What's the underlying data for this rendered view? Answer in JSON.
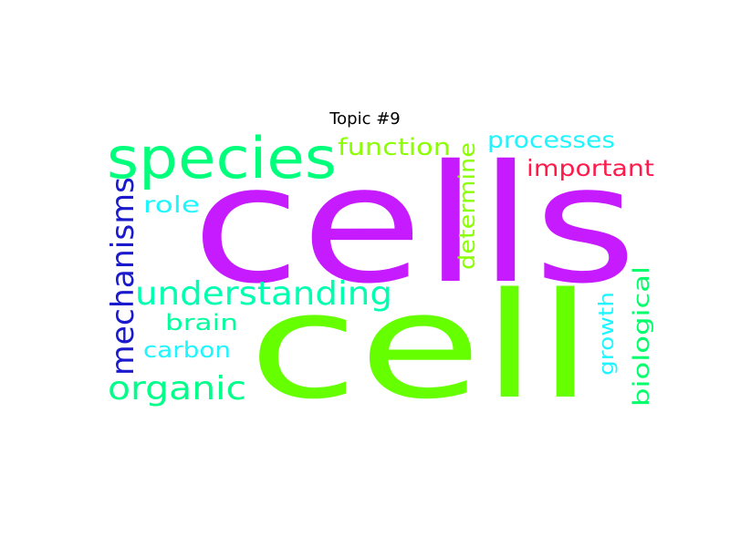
{
  "chart_data": {
    "type": "wordcloud",
    "title": "Topic #9",
    "words": [
      {
        "text": "cells",
        "color": "#c61bff",
        "weight": 1.0
      },
      {
        "text": "cell",
        "color": "#66ff00",
        "weight": 0.95
      },
      {
        "text": "species",
        "color": "#00ff7b",
        "weight": 0.4
      },
      {
        "text": "understanding",
        "color": "#00ffb0",
        "weight": 0.28
      },
      {
        "text": "mechanisms",
        "color": "#1a1acc",
        "weight": 0.28
      },
      {
        "text": "organic",
        "color": "#00ff8a",
        "weight": 0.28
      },
      {
        "text": "function",
        "color": "#8aff00",
        "weight": 0.2
      },
      {
        "text": "processes",
        "color": "#1ef5ff",
        "weight": 0.2
      },
      {
        "text": "important",
        "color": "#ff1a4b",
        "weight": 0.2
      },
      {
        "text": "determine",
        "color": "#8aff00",
        "weight": 0.2
      },
      {
        "text": "role",
        "color": "#1ef5ff",
        "weight": 0.18
      },
      {
        "text": "brain",
        "color": "#00ff9c",
        "weight": 0.18
      },
      {
        "text": "carbon",
        "color": "#1ef5ff",
        "weight": 0.18
      },
      {
        "text": "growth",
        "color": "#1ef5ff",
        "weight": 0.16
      },
      {
        "text": "biological",
        "color": "#00ff6a",
        "weight": 0.18
      }
    ]
  }
}
